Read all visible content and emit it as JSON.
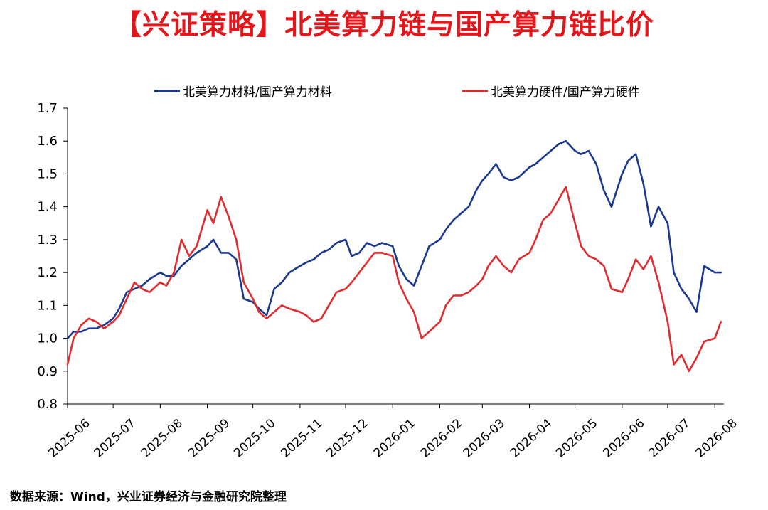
{
  "title": "【兴证策略】北美算力链与国产算力链比价",
  "source": "数据来源：Wind，兴业证券经济与金融研究院整理",
  "colors": {
    "title": "#e4161b",
    "series_1": "#1b3a8f",
    "series_2": "#e02c2f",
    "axis": "#000000"
  },
  "chart_data": {
    "type": "line",
    "legend_position": "top",
    "grid": false,
    "y_ticks": [
      "0.8",
      "0.9",
      "1.0",
      "1.1",
      "1.2",
      "1.3",
      "1.4",
      "1.5",
      "1.6",
      "1.7"
    ],
    "ylim": [
      0.8,
      1.7
    ],
    "x_ticks": [
      "2025-06",
      "2025-07",
      "2025-08",
      "2025-09",
      "2025-10",
      "2025-11",
      "2025-12",
      "2026-01",
      "2026-02",
      "2026-03",
      "2026-04",
      "2026-05",
      "2026-06",
      "2026-07",
      "2026-08"
    ],
    "xlim": [
      "2025-06-01",
      "2026-08-07"
    ],
    "series": [
      {
        "name": "北美算力材料/国产算力材料",
        "color": "#1b3a8f",
        "x": [
          "2025-06-01",
          "2025-06-05",
          "2025-06-10",
          "2025-06-15",
          "2025-06-20",
          "2025-06-25",
          "2025-07-01",
          "2025-07-05",
          "2025-07-10",
          "2025-07-15",
          "2025-07-20",
          "2025-07-25",
          "2025-08-01",
          "2025-08-05",
          "2025-08-10",
          "2025-08-15",
          "2025-08-20",
          "2025-08-25",
          "2025-09-01",
          "2025-09-05",
          "2025-09-10",
          "2025-09-15",
          "2025-09-20",
          "2025-09-25",
          "2025-10-01",
          "2025-10-05",
          "2025-10-10",
          "2025-10-15",
          "2025-10-20",
          "2025-10-25",
          "2025-11-01",
          "2025-11-05",
          "2025-11-10",
          "2025-11-15",
          "2025-11-20",
          "2025-11-25",
          "2025-12-01",
          "2025-12-05",
          "2025-12-10",
          "2025-12-15",
          "2025-12-20",
          "2025-12-25",
          "2026-01-01",
          "2026-01-05",
          "2026-01-10",
          "2026-01-15",
          "2026-01-20",
          "2026-01-25",
          "2026-02-01",
          "2026-02-05",
          "2026-02-10",
          "2026-02-15",
          "2026-02-20",
          "2026-02-25",
          "2026-03-01",
          "2026-03-05",
          "2026-03-10",
          "2026-03-15",
          "2026-03-20",
          "2026-03-25",
          "2026-04-01",
          "2026-04-05",
          "2026-04-10",
          "2026-04-15",
          "2026-04-20",
          "2026-04-25",
          "2026-05-01",
          "2026-05-05",
          "2026-05-10",
          "2026-05-15",
          "2026-05-20",
          "2026-05-25",
          "2026-06-01",
          "2026-06-05",
          "2026-06-10",
          "2026-06-15",
          "2026-06-20",
          "2026-06-25",
          "2026-07-01",
          "2026-07-05",
          "2026-07-10",
          "2026-07-15",
          "2026-07-20",
          "2026-07-25",
          "2026-08-01",
          "2026-08-05"
        ],
        "values": [
          1.0,
          1.02,
          1.02,
          1.03,
          1.03,
          1.04,
          1.06,
          1.09,
          1.14,
          1.15,
          1.16,
          1.18,
          1.2,
          1.19,
          1.19,
          1.22,
          1.24,
          1.26,
          1.28,
          1.3,
          1.26,
          1.26,
          1.24,
          1.12,
          1.11,
          1.09,
          1.07,
          1.15,
          1.17,
          1.2,
          1.22,
          1.23,
          1.24,
          1.26,
          1.27,
          1.29,
          1.3,
          1.25,
          1.26,
          1.29,
          1.28,
          1.29,
          1.28,
          1.22,
          1.18,
          1.16,
          1.22,
          1.28,
          1.3,
          1.33,
          1.36,
          1.38,
          1.4,
          1.45,
          1.48,
          1.5,
          1.53,
          1.49,
          1.48,
          1.49,
          1.52,
          1.53,
          1.55,
          1.57,
          1.59,
          1.6,
          1.57,
          1.56,
          1.57,
          1.53,
          1.45,
          1.4,
          1.5,
          1.54,
          1.56,
          1.47,
          1.34,
          1.4,
          1.35,
          1.2,
          1.15,
          1.12,
          1.08,
          1.22,
          1.2,
          1.2
        ]
      },
      {
        "name": "北美算力硬件/国产算力硬件",
        "color": "#e02c2f",
        "x": [
          "2025-06-01",
          "2025-06-05",
          "2025-06-10",
          "2025-06-15",
          "2025-06-20",
          "2025-06-25",
          "2025-07-01",
          "2025-07-05",
          "2025-07-10",
          "2025-07-15",
          "2025-07-20",
          "2025-07-25",
          "2025-08-01",
          "2025-08-05",
          "2025-08-10",
          "2025-08-15",
          "2025-08-20",
          "2025-08-25",
          "2025-09-01",
          "2025-09-05",
          "2025-09-10",
          "2025-09-15",
          "2025-09-20",
          "2025-09-25",
          "2025-10-01",
          "2025-10-05",
          "2025-10-10",
          "2025-10-15",
          "2025-10-20",
          "2025-10-25",
          "2025-11-01",
          "2025-11-05",
          "2025-11-10",
          "2025-11-15",
          "2025-11-20",
          "2025-11-25",
          "2025-12-01",
          "2025-12-05",
          "2025-12-10",
          "2025-12-15",
          "2025-12-20",
          "2025-12-25",
          "2026-01-01",
          "2026-01-05",
          "2026-01-10",
          "2026-01-15",
          "2026-01-20",
          "2026-01-25",
          "2026-02-01",
          "2026-02-05",
          "2026-02-10",
          "2026-02-15",
          "2026-02-20",
          "2026-02-25",
          "2026-03-01",
          "2026-03-05",
          "2026-03-10",
          "2026-03-15",
          "2026-03-20",
          "2026-03-25",
          "2026-04-01",
          "2026-04-05",
          "2026-04-10",
          "2026-04-15",
          "2026-04-20",
          "2026-04-25",
          "2026-05-01",
          "2026-05-05",
          "2026-05-10",
          "2026-05-15",
          "2026-05-20",
          "2026-05-25",
          "2026-06-01",
          "2026-06-05",
          "2026-06-10",
          "2026-06-15",
          "2026-06-20",
          "2026-06-25",
          "2026-07-01",
          "2026-07-05",
          "2026-07-10",
          "2026-07-15",
          "2026-07-20",
          "2026-07-25",
          "2026-08-01",
          "2026-08-05"
        ],
        "values": [
          0.92,
          1.0,
          1.04,
          1.06,
          1.05,
          1.03,
          1.05,
          1.07,
          1.12,
          1.17,
          1.15,
          1.14,
          1.17,
          1.16,
          1.2,
          1.3,
          1.25,
          1.28,
          1.39,
          1.35,
          1.43,
          1.37,
          1.3,
          1.17,
          1.12,
          1.08,
          1.06,
          1.08,
          1.1,
          1.09,
          1.08,
          1.07,
          1.05,
          1.06,
          1.1,
          1.14,
          1.15,
          1.17,
          1.2,
          1.23,
          1.26,
          1.26,
          1.25,
          1.17,
          1.12,
          1.08,
          1.0,
          1.02,
          1.05,
          1.1,
          1.13,
          1.13,
          1.14,
          1.16,
          1.18,
          1.22,
          1.25,
          1.22,
          1.2,
          1.24,
          1.26,
          1.3,
          1.36,
          1.38,
          1.42,
          1.46,
          1.35,
          1.28,
          1.25,
          1.24,
          1.22,
          1.15,
          1.14,
          1.18,
          1.24,
          1.21,
          1.25,
          1.17,
          1.05,
          0.92,
          0.95,
          0.9,
          0.94,
          0.99,
          1.0,
          1.05
        ]
      }
    ]
  }
}
